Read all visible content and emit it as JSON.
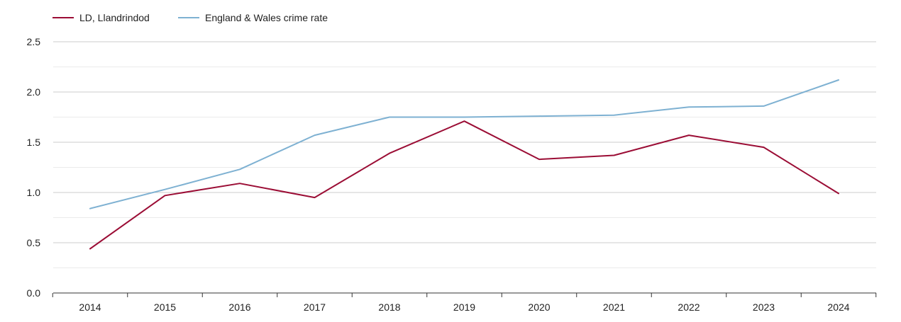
{
  "chart_data": {
    "type": "line",
    "title": "",
    "xlabel": "",
    "ylabel": "",
    "x": [
      "2014",
      "2015",
      "2016",
      "2017",
      "2018",
      "2019",
      "2020",
      "2021",
      "2022",
      "2023",
      "2024"
    ],
    "ylim": [
      0,
      2.5
    ],
    "yticks": [
      "0.0",
      "0.5",
      "1.0",
      "1.5",
      "2.0",
      "2.5"
    ],
    "grid": true,
    "legend_position": "top-left",
    "series": [
      {
        "name": "LD, Llandrindod",
        "color": "#9b0d35",
        "values": [
          0.44,
          0.97,
          1.09,
          0.95,
          1.39,
          1.71,
          1.33,
          1.37,
          1.57,
          1.45,
          0.99
        ]
      },
      {
        "name": "England & Wales crime rate",
        "color": "#7eb1d2",
        "values": [
          0.84,
          1.03,
          1.23,
          1.57,
          1.75,
          1.75,
          1.76,
          1.77,
          1.85,
          1.86,
          2.12
        ]
      }
    ]
  }
}
